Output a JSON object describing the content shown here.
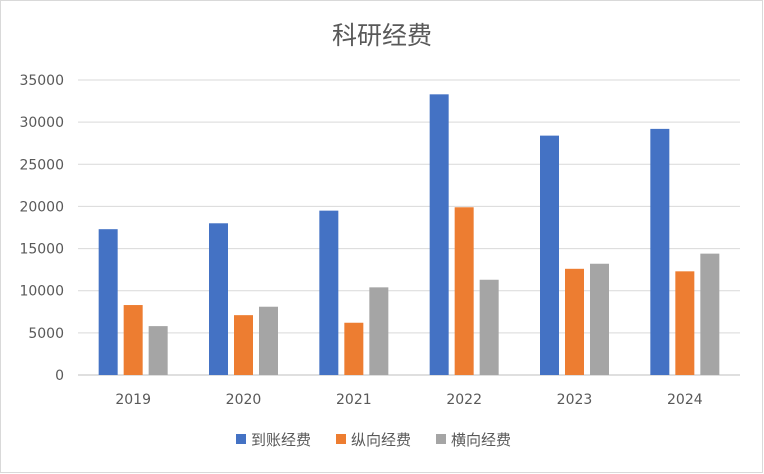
{
  "chart_data": {
    "type": "bar",
    "title": "科研经费",
    "xlabel": "",
    "ylabel": "",
    "categories": [
      "2019",
      "2020",
      "2021",
      "2022",
      "2023",
      "2024"
    ],
    "series": [
      {
        "name": "到账经费",
        "color": "#4472C4",
        "values": [
          17300,
          18000,
          19500,
          33300,
          28400,
          29200
        ]
      },
      {
        "name": "纵向经费",
        "color": "#ED7D31",
        "values": [
          8300,
          7100,
          6200,
          19900,
          12600,
          12300
        ]
      },
      {
        "name": "横向经费",
        "color": "#A5A5A5",
        "values": [
          5800,
          8100,
          10400,
          11300,
          13200,
          14400
        ]
      }
    ],
    "ylim": [
      0,
      35000
    ],
    "yticks": [
      "0",
      "5000",
      "10000",
      "15000",
      "20000",
      "25000",
      "30000",
      "35000"
    ],
    "grid": true,
    "legend": "bottom"
  }
}
